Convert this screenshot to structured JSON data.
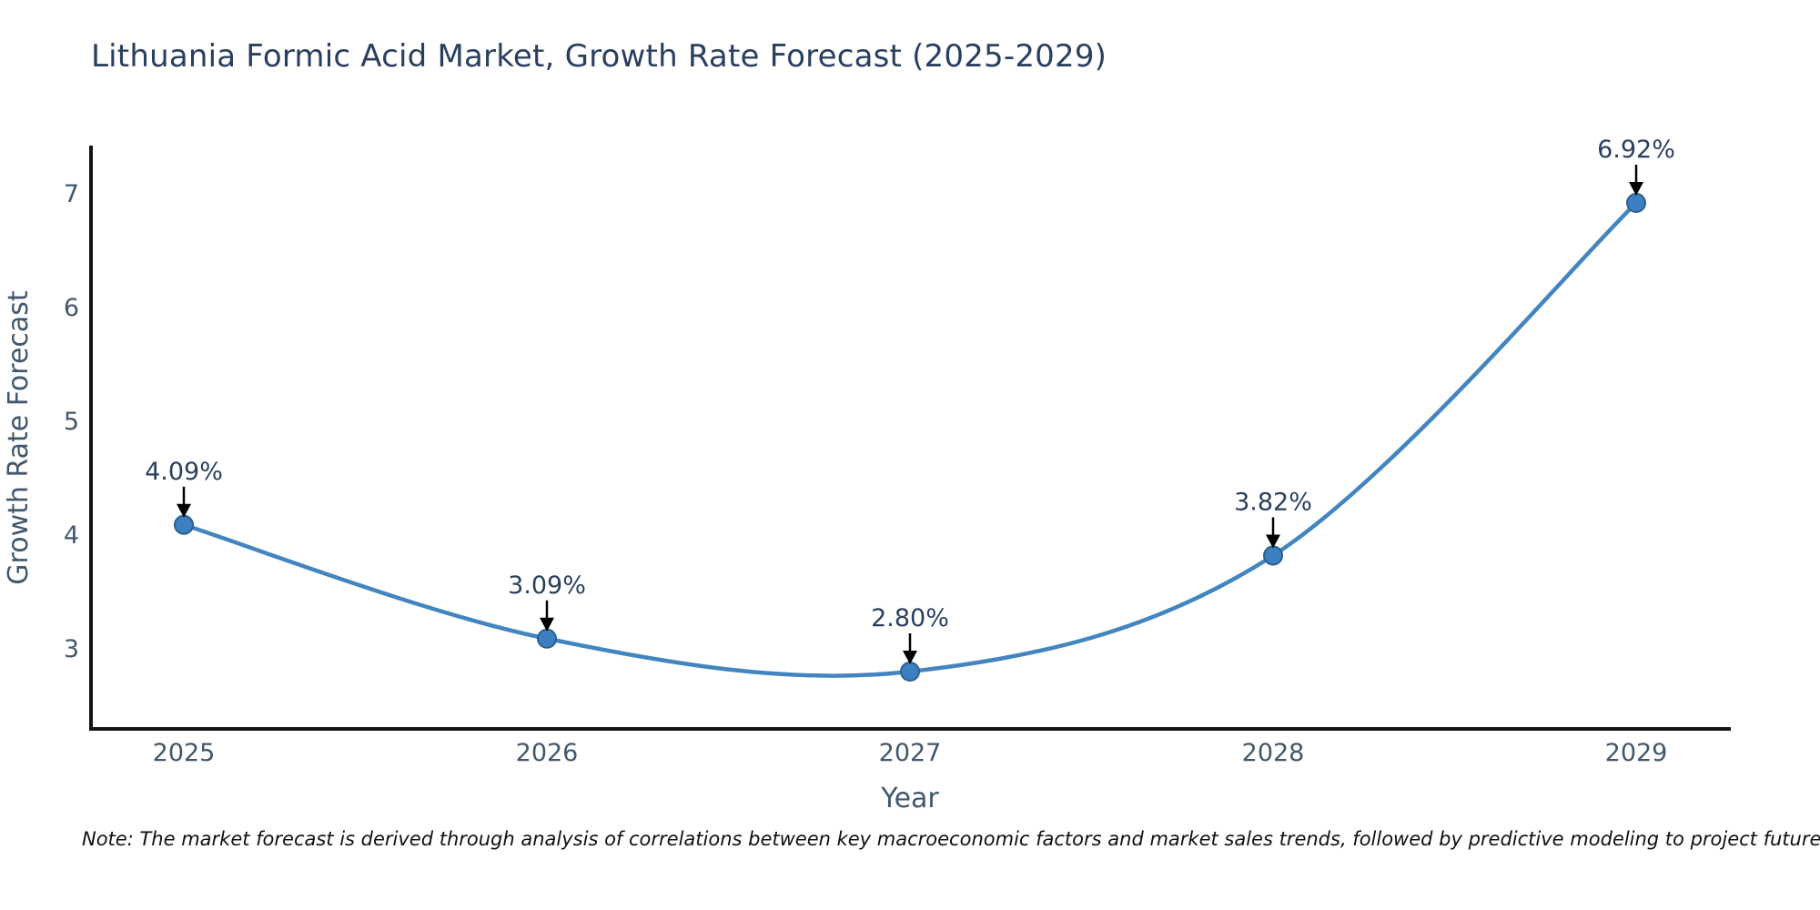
{
  "chart_data": {
    "type": "line",
    "line_shape": "spline",
    "title": "Lithuania Formic Acid Market, Growth Rate Forecast (2025-2029)",
    "xlabel": "Year",
    "ylabel": "Growth Rate Forecast",
    "categories": [
      "2025",
      "2026",
      "2027",
      "2028",
      "2029"
    ],
    "series": [
      {
        "name": "Growth Rate Forecast",
        "values": [
          4.09,
          3.09,
          2.8,
          3.82,
          6.92
        ]
      }
    ],
    "point_labels": [
      "4.09%",
      "3.09%",
      "2.80%",
      "3.82%",
      "6.92%"
    ],
    "yticks": [
      3,
      4,
      5,
      6,
      7
    ],
    "ylim": [
      2.3,
      7.4
    ],
    "grid": false,
    "legend": "none",
    "markers": "circle",
    "annotation_arrows": true,
    "colors": {
      "line": "#4285bf",
      "marker_fill": "#3d80c1",
      "marker_edge": "#2b5f8e",
      "title_text": "#2a3f5f",
      "axis_text": "#42576b",
      "annotation_text": "#2a3f5f",
      "spine": "#141414",
      "arrow": "#000000",
      "background": "#ffffff"
    }
  },
  "note": "Note: The market forecast is derived through analysis of correlations between key macroeconomic factors and market sales trends, followed by predictive modeling to project future sales."
}
